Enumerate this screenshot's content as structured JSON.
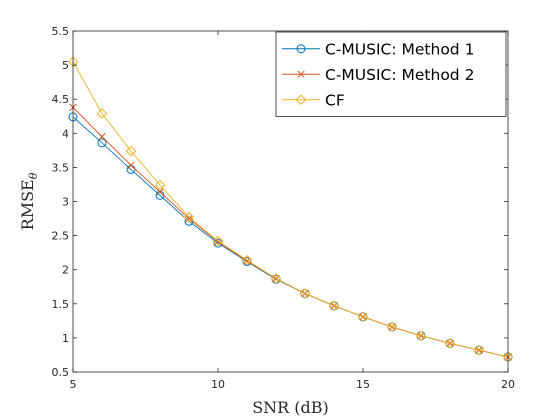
{
  "chart_data": {
    "type": "line",
    "x": [
      5,
      6,
      7,
      8,
      9,
      10,
      11,
      12,
      13,
      14,
      15,
      16,
      17,
      18,
      19,
      20
    ],
    "series": [
      {
        "name": "C-MUSIC: Method 1",
        "color": "#0072BD",
        "marker": "circle",
        "values": [
          4.24,
          3.86,
          3.47,
          3.09,
          2.71,
          2.39,
          2.12,
          1.86,
          1.65,
          1.47,
          1.31,
          1.16,
          1.03,
          0.92,
          0.82,
          0.72
        ]
      },
      {
        "name": "C-MUSIC: Method 2",
        "color": "#D95319",
        "marker": "x",
        "values": [
          4.38,
          3.95,
          3.53,
          3.14,
          2.75,
          2.41,
          2.13,
          1.87,
          1.65,
          1.47,
          1.31,
          1.16,
          1.03,
          0.92,
          0.82,
          0.72
        ]
      },
      {
        "name": "CF",
        "color": "#EDB120",
        "marker": "diamond",
        "values": [
          5.05,
          4.29,
          3.74,
          3.24,
          2.77,
          2.42,
          2.14,
          1.87,
          1.65,
          1.47,
          1.31,
          1.16,
          1.03,
          0.92,
          0.82,
          0.72
        ]
      }
    ],
    "xlabel": "SNR (dB)",
    "ylabel": "RMSE",
    "ylabel_subscript": "θ",
    "xlim": [
      5,
      20
    ],
    "ylim": [
      0.5,
      5.5
    ],
    "xticks": [
      5,
      10,
      15,
      20
    ],
    "yticks": [
      0.5,
      1,
      1.5,
      2,
      2.5,
      3,
      3.5,
      4,
      4.5,
      5,
      5.5
    ],
    "grid": false,
    "legend": "top-right"
  }
}
